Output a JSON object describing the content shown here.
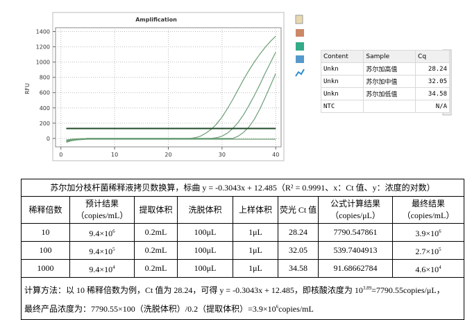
{
  "chart_data": {
    "type": "line",
    "title": "Amplification",
    "y_label": "RFU",
    "x": [
      1,
      2,
      3,
      4,
      5,
      6,
      7,
      8,
      9,
      10,
      11,
      12,
      13,
      14,
      15,
      16,
      17,
      18,
      19,
      20,
      21,
      22,
      23,
      24,
      25,
      26,
      27,
      28,
      29,
      30,
      31,
      32,
      33,
      34,
      35,
      36,
      37,
      38,
      39,
      40
    ],
    "series": [
      {
        "color": "#6a9e76",
        "values": [
          -40,
          -20,
          -10,
          -5,
          0,
          0,
          0,
          0,
          0,
          0,
          0,
          0,
          0,
          0,
          0,
          0,
          0,
          0,
          0,
          0,
          0,
          0,
          0,
          0,
          10,
          30,
          70,
          120,
          190,
          280,
          390,
          510,
          640,
          770,
          890,
          1000,
          1100,
          1190,
          1270,
          1340
        ]
      },
      {
        "color": "#6a9e76",
        "values": [
          -30,
          -15,
          -8,
          -4,
          0,
          0,
          0,
          0,
          0,
          0,
          0,
          0,
          0,
          0,
          0,
          0,
          0,
          0,
          0,
          0,
          0,
          0,
          0,
          0,
          0,
          0,
          0,
          0,
          10,
          30,
          70,
          130,
          210,
          310,
          430,
          560,
          700,
          850,
          990,
          1130
        ]
      },
      {
        "color": "#6a9e76",
        "values": [
          -20,
          -10,
          -5,
          -3,
          0,
          0,
          0,
          0,
          0,
          0,
          0,
          0,
          0,
          0,
          0,
          0,
          0,
          0,
          0,
          0,
          0,
          0,
          0,
          0,
          0,
          0,
          0,
          0,
          0,
          0,
          0,
          0,
          30,
          80,
          150,
          250,
          380,
          530,
          690,
          850
        ]
      },
      {
        "color": "#6a9e76",
        "values": [
          -50,
          -30,
          -20,
          -15,
          -10,
          -10,
          -10,
          -10,
          -10,
          -10,
          -10,
          -10,
          -10,
          -10,
          -10,
          -10,
          -10,
          -10,
          -10,
          -10,
          -10,
          -10,
          -10,
          -10,
          -10,
          -10,
          -10,
          -10,
          -10,
          -10,
          -10,
          -10,
          -10,
          -10,
          -10,
          -10,
          -10,
          -10,
          -10,
          -10
        ]
      }
    ],
    "threshold": 130,
    "threshold_color": "#1f4a28",
    "xlim": [
      -1,
      41
    ],
    "xticks": [
      0,
      10,
      20,
      30,
      40
    ],
    "ylim": [
      -110,
      1450
    ],
    "yticks": [
      0,
      200,
      400,
      600,
      800,
      1000,
      1200,
      1400
    ],
    "grid": true
  },
  "cq_table": {
    "header": [
      "Content",
      "Sample",
      "Cq"
    ],
    "rows": [
      [
        "Unkn",
        "苏尔加高值",
        "28.24"
      ],
      [
        "Unkn",
        "苏尔加中值",
        "32.05"
      ],
      [
        "Unkn",
        "苏尔加低值",
        "34.58"
      ],
      [
        "NTC",
        null,
        "N/A"
      ]
    ]
  },
  "result_table": {
    "title": "苏尔加分枝杆菌稀释液拷贝数换算，标曲 y = -0.3043x + 12.485（R² = 0.9991、x：Ct 值、y：浓度的对数）",
    "header": [
      "稀释倍数",
      "预计结果\n（copies/mL）",
      "提取体积",
      "洗脱体积",
      "上样体积",
      "荧光 Ct 值",
      "公式计算结果\n（copies/μL）",
      "最终结果\n（copies/mL）"
    ],
    "rows": [
      [
        "10",
        {
          "base": "9.4×10",
          "exp": "6"
        },
        "0.2mL",
        "100μL",
        "1μL",
        "28.24",
        "7790.547861",
        {
          "base": "3.9×10",
          "exp": "6"
        }
      ],
      [
        "100",
        {
          "base": "9.4×10",
          "exp": "5"
        },
        "0.2mL",
        "100μL",
        "1μL",
        "32.05",
        "539.7404913",
        {
          "base": "2.7×10",
          "exp": "5"
        }
      ],
      [
        "1000",
        {
          "base": "9.4×10",
          "exp": "4"
        },
        "0.2mL",
        "100μL",
        "1μL",
        "34.58",
        "91.68662784",
        {
          "base": "4.6×10",
          "exp": "4"
        }
      ]
    ],
    "footer": [
      [
        {
          "text": "计算方法：以 10 稀释倍数为例，Ct 值为 28.24，可得 y = -0.3043x + 12.485，即核酸浓度为 10"
        },
        {
          "sup": "3.89"
        },
        {
          "text": "=7790.55copies/μL，"
        }
      ],
      [
        {
          "text": "最终产品浓度为：7790.55×100（洗脱体积）/0.2（提取体积）=3.9×10"
        },
        {
          "sup": "6"
        },
        {
          "text": "copies/mL"
        }
      ]
    ]
  }
}
